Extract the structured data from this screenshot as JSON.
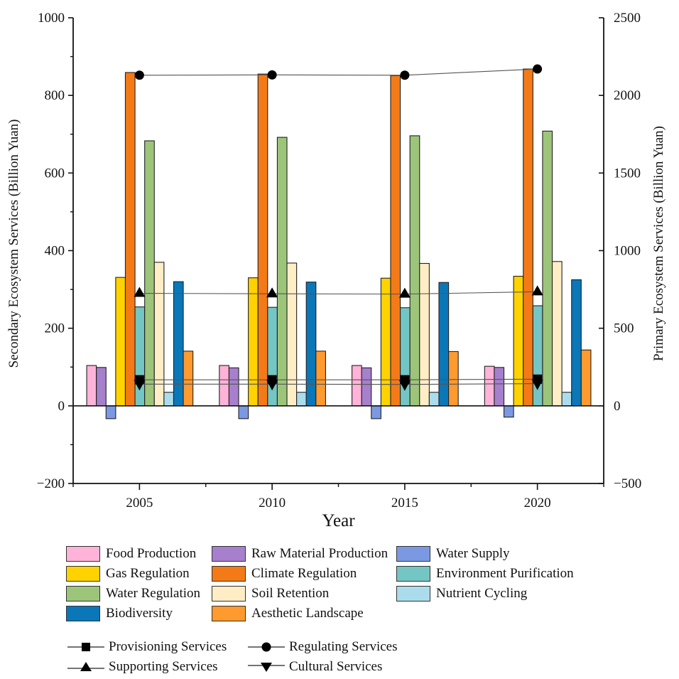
{
  "chart_data": {
    "type": "bar",
    "title": "",
    "xlabel": "Year",
    "ylabel": "Secondary Ecosystem Services (Billion Yuan)",
    "y2label": "Primary Ecosystem Services (Billion Yuan)",
    "categories": [
      "2005",
      "2010",
      "2015",
      "2020"
    ],
    "xlim": [
      2002.5,
      2022.5
    ],
    "ylim": [
      -200,
      1000
    ],
    "y2lim": [
      -500,
      2500
    ],
    "yticks": [
      -200,
      0,
      200,
      400,
      600,
      800,
      1000
    ],
    "yticks_display": [
      "−200",
      "0",
      "200",
      "400",
      "600",
      "800",
      "1000"
    ],
    "y2ticks": [
      -500,
      0,
      500,
      1000,
      1500,
      2000,
      2500
    ],
    "y2ticks_display": [
      "−500",
      "0",
      "500",
      "1000",
      "1500",
      "2000",
      "2500"
    ],
    "grid": false,
    "legend_position": "bottom",
    "series": [
      {
        "name": "Food Production",
        "color": "#FFB3D9",
        "axis": "left",
        "values": [
          104,
          104,
          104,
          102
        ]
      },
      {
        "name": "Raw Material Production",
        "color": "#A680CC",
        "axis": "left",
        "values": [
          99,
          98,
          98,
          99
        ]
      },
      {
        "name": "Water Supply",
        "color": "#7B99E3",
        "axis": "left",
        "values": [
          -33,
          -33,
          -33,
          -29
        ]
      },
      {
        "name": "Gas Regulation",
        "color": "#FFD200",
        "axis": "left",
        "values": [
          331,
          330,
          329,
          334
        ]
      },
      {
        "name": "Climate Regulation",
        "color": "#F47A17",
        "axis": "left",
        "values": [
          859,
          855,
          851,
          868
        ]
      },
      {
        "name": "Environment Purification",
        "color": "#73C6C3",
        "axis": "left",
        "values": [
          255,
          254,
          253,
          258
        ]
      },
      {
        "name": "Water Regulation",
        "color": "#9DC57A",
        "axis": "left",
        "values": [
          683,
          692,
          696,
          708
        ]
      },
      {
        "name": "Soil Retention",
        "color": "#FFEDC6",
        "axis": "left",
        "values": [
          370,
          368,
          367,
          372
        ]
      },
      {
        "name": "Nutrient Cycling",
        "color": "#ABDCEC",
        "axis": "left",
        "values": [
          35,
          35,
          35,
          35
        ]
      },
      {
        "name": "Biodiversity",
        "color": "#0A77B8",
        "axis": "left",
        "values": [
          320,
          319,
          318,
          325
        ]
      },
      {
        "name": "Aesthetic Landscape",
        "color": "#FF9A2E",
        "axis": "left",
        "values": [
          141,
          141,
          140,
          144
        ]
      }
    ],
    "line_series": [
      {
        "name": "Provisioning Services",
        "marker": "square",
        "axis": "right",
        "values": [
          168,
          168,
          168,
          172
        ]
      },
      {
        "name": "Regulating Services",
        "marker": "circle",
        "axis": "right",
        "values": [
          2130,
          2132,
          2130,
          2170
        ]
      },
      {
        "name": "Supporting Services",
        "marker": "triangle-up",
        "axis": "right",
        "values": [
          725,
          722,
          720,
          735
        ]
      },
      {
        "name": "Cultural Services",
        "marker": "triangle-down",
        "axis": "right",
        "values": [
          140,
          140,
          138,
          143
        ]
      }
    ]
  }
}
